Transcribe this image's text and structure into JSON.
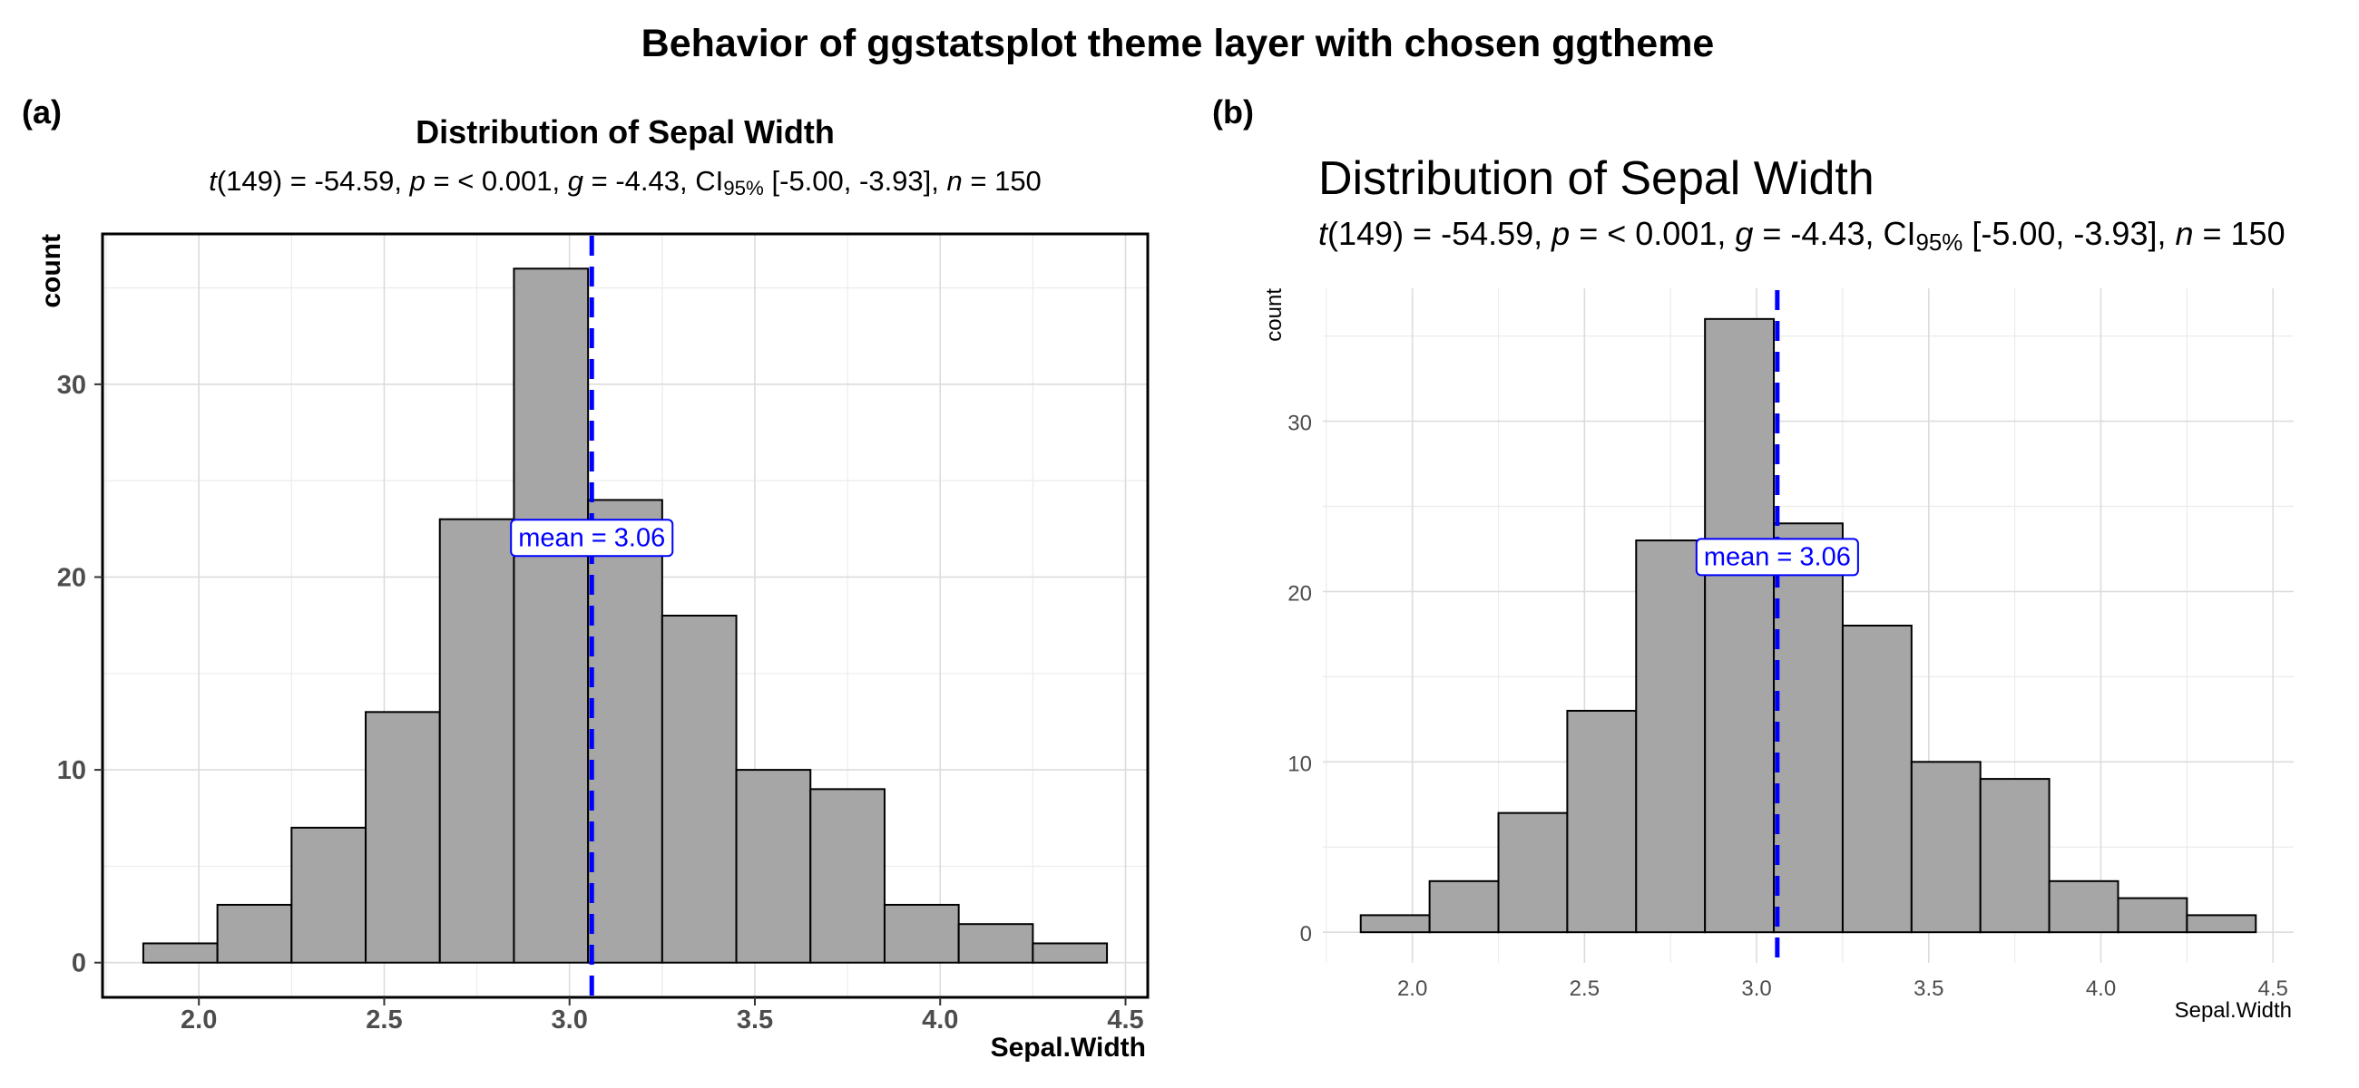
{
  "figure": {
    "title": "Behavior of ggstatsplot theme layer with chosen ggtheme",
    "tag_a": "(a)",
    "tag_b": "(b)"
  },
  "subtitle_parts": {
    "t": "t",
    "t_rest": "(149) = -54.59, ",
    "p": "p",
    "p_rest": " = < 0.001, ",
    "g": "g",
    "g_rest": " = -4.43, CI",
    "ci_sub": "95%",
    "ci_rest": " [-5.00, -3.93], ",
    "n": "n",
    "n_rest": " = 150"
  },
  "mean_label": {
    "prefix": "mean",
    "eq": " = ",
    "value": "3.06"
  },
  "colors": {
    "bar_fill": "#a6a6a6",
    "bar_stroke": "#000000",
    "mean_line": "#0000ff"
  },
  "chart_data": [
    {
      "type": "bar",
      "panel": "a",
      "title": "Distribution of Sepal Width",
      "xlabel": "Sepal.Width",
      "ylabel": "count",
      "bin_width": 0.2,
      "bins": [
        {
          "x0": 1.85,
          "x1": 2.05,
          "count": 1
        },
        {
          "x0": 2.05,
          "x1": 2.25,
          "count": 3
        },
        {
          "x0": 2.25,
          "x1": 2.45,
          "count": 7
        },
        {
          "x0": 2.45,
          "x1": 2.65,
          "count": 13
        },
        {
          "x0": 2.65,
          "x1": 2.85,
          "count": 23
        },
        {
          "x0": 2.85,
          "x1": 3.05,
          "count": 36
        },
        {
          "x0": 3.05,
          "x1": 3.25,
          "count": 24
        },
        {
          "x0": 3.25,
          "x1": 3.45,
          "count": 18
        },
        {
          "x0": 3.45,
          "x1": 3.65,
          "count": 10
        },
        {
          "x0": 3.65,
          "x1": 3.85,
          "count": 9
        },
        {
          "x0": 3.85,
          "x1": 4.05,
          "count": 3
        },
        {
          "x0": 4.05,
          "x1": 4.25,
          "count": 2
        },
        {
          "x0": 4.25,
          "x1": 4.45,
          "count": 1
        }
      ],
      "mean": 3.06,
      "xticks": [
        "2.0",
        "2.5",
        "3.0",
        "3.5",
        "4.0",
        "4.5"
      ],
      "yticks": [
        "0",
        "10",
        "20",
        "30"
      ],
      "xlim": [
        1.74,
        4.56
      ],
      "ylim": [
        -1.8,
        37.8
      ],
      "grid": true,
      "panel_border": true
    },
    {
      "type": "bar",
      "panel": "b",
      "title": "Distribution of Sepal Width",
      "xlabel": "Sepal.Width",
      "ylabel": "count",
      "bin_width": 0.2,
      "bins": [
        {
          "x0": 1.85,
          "x1": 2.05,
          "count": 1
        },
        {
          "x0": 2.05,
          "x1": 2.25,
          "count": 3
        },
        {
          "x0": 2.25,
          "x1": 2.45,
          "count": 7
        },
        {
          "x0": 2.45,
          "x1": 2.65,
          "count": 13
        },
        {
          "x0": 2.65,
          "x1": 2.85,
          "count": 23
        },
        {
          "x0": 2.85,
          "x1": 3.05,
          "count": 36
        },
        {
          "x0": 3.05,
          "x1": 3.25,
          "count": 24
        },
        {
          "x0": 3.25,
          "x1": 3.45,
          "count": 18
        },
        {
          "x0": 3.45,
          "x1": 3.65,
          "count": 10
        },
        {
          "x0": 3.65,
          "x1": 3.85,
          "count": 9
        },
        {
          "x0": 3.85,
          "x1": 4.05,
          "count": 3
        },
        {
          "x0": 4.05,
          "x1": 4.25,
          "count": 2
        },
        {
          "x0": 4.25,
          "x1": 4.45,
          "count": 1
        }
      ],
      "mean": 3.06,
      "xticks": [
        "2.0",
        "2.5",
        "3.0",
        "3.5",
        "4.0",
        "4.5"
      ],
      "yticks": [
        "0",
        "10",
        "20",
        "30"
      ],
      "xlim": [
        1.74,
        4.56
      ],
      "ylim": [
        -1.8,
        37.8
      ],
      "grid": true,
      "panel_border": false
    }
  ]
}
